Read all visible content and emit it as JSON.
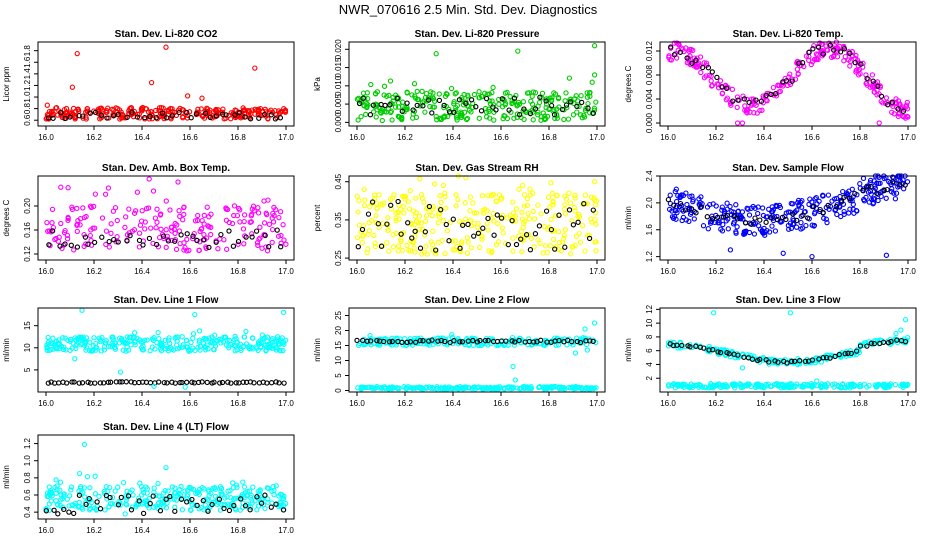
{
  "title": "NWR_070616  2.5 Min. Std. Dev. Diagnostics",
  "colors": {
    "red": "#ff0000",
    "green": "#00cc00",
    "magenta": "#ff00ff",
    "yellow": "#ffff00",
    "blue": "#0000ff",
    "cyan": "#00ffff",
    "black": "#000000"
  },
  "chart_data": [
    {
      "type": "scatter",
      "id": "li820-co2",
      "title": "Stan. Dev. Li-820 CO2",
      "ylabel": "Licor ppm",
      "xlim": [
        16.0,
        17.0
      ],
      "ylim": [
        0.5,
        1.95
      ],
      "xticks": [
        "16.0",
        "16.2",
        "16.4",
        "16.6",
        "16.8",
        "17.0"
      ],
      "yticks": [
        "0.6",
        "0.8",
        "1.0",
        "1.2",
        "1.4",
        "1.6",
        "1.8"
      ],
      "yticks_val": [
        0.6,
        0.8,
        1.0,
        1.2,
        1.4,
        1.6,
        1.8
      ],
      "color": "red",
      "n": 260,
      "band": [
        0.62,
        0.82
      ],
      "base_slope": 0.0,
      "ref_band": [
        0.62,
        0.74
      ],
      "ref_n": 40,
      "outliers": [
        [
          16.13,
          1.75
        ],
        [
          16.5,
          1.86
        ],
        [
          16.87,
          1.5
        ],
        [
          16.11,
          1.17
        ],
        [
          16.59,
          1.02
        ],
        [
          16.65,
          0.98
        ],
        [
          16.44,
          1.25
        ]
      ]
    },
    {
      "type": "scatter",
      "id": "li820-pressure",
      "title": "Stan. Dev. Li-820 Pressure",
      "ylabel": "kPa",
      "xlim": [
        16.0,
        17.0
      ],
      "ylim": [
        -0.001,
        0.022
      ],
      "xticks": [
        "16.0",
        "16.2",
        "16.4",
        "16.6",
        "16.8",
        "17.0"
      ],
      "yticks": [
        "0.000",
        "0.005",
        "0.010",
        "0.015",
        "0.020"
      ],
      "yticks_val": [
        0.0,
        0.005,
        0.01,
        0.015,
        0.02
      ],
      "color": "green",
      "n": 300,
      "band": [
        0.0005,
        0.0085
      ],
      "base_slope": 0.0,
      "ref_band": [
        0.002,
        0.007
      ],
      "ref_n": 45,
      "outliers": [
        [
          16.33,
          0.0188
        ],
        [
          16.67,
          0.0195
        ],
        [
          16.99,
          0.021
        ],
        [
          16.99,
          0.013
        ],
        [
          16.98,
          0.011
        ]
      ]
    },
    {
      "type": "scatter",
      "id": "li820-temp",
      "title": "Stan. Dev. Li-820 Temp.",
      "ylabel": "degrees C",
      "xlim": [
        16.0,
        17.0
      ],
      "ylim": [
        -0.0005,
        0.0135
      ],
      "xticks": [
        "16.0",
        "16.2",
        "16.4",
        "16.6",
        "16.8",
        "17.0"
      ],
      "yticks": [
        "0.000",
        "0.004",
        "0.008",
        "0.012"
      ],
      "yticks_val": [
        0.0,
        0.004,
        0.008,
        0.012
      ],
      "color": "magenta",
      "n": 260,
      "curve": "temp",
      "ref_n": 45,
      "outliers": [
        [
          16.29,
          0.0
        ],
        [
          16.31,
          0.0
        ],
        [
          16.88,
          0.0
        ]
      ]
    },
    {
      "type": "scatter",
      "id": "amb-box-temp",
      "title": "Stan. Dev. Amb. Box Temp.",
      "ylabel": "degrees C",
      "xlim": [
        16.0,
        17.0
      ],
      "ylim": [
        0.11,
        0.25
      ],
      "xticks": [
        "16.0",
        "16.2",
        "16.4",
        "16.6",
        "16.8",
        "17.0"
      ],
      "yticks": [
        "0.12",
        "0.16",
        "0.20"
      ],
      "yticks_val": [
        0.12,
        0.16,
        0.2
      ],
      "color": "magenta",
      "n": 220,
      "band": [
        0.125,
        0.2
      ],
      "base_slope": 0.0,
      "ref_band": [
        0.13,
        0.16
      ],
      "ref_n": 40,
      "outliers": [
        [
          16.43,
          0.245
        ],
        [
          16.55,
          0.24
        ],
        [
          16.26,
          0.23
        ]
      ]
    },
    {
      "type": "scatter",
      "id": "gas-stream-rh",
      "title": "Stan. Dev. Gas Stream RH",
      "ylabel": "percent",
      "xlim": [
        16.0,
        17.0
      ],
      "ylim": [
        0.245,
        0.465
      ],
      "xticks": [
        "16.0",
        "16.2",
        "16.4",
        "16.6",
        "16.8",
        "17.0"
      ],
      "yticks": [
        "0.25",
        "0.35",
        "0.45"
      ],
      "yticks_val": [
        0.25,
        0.35,
        0.45
      ],
      "color": "yellow",
      "n": 320,
      "band": [
        0.26,
        0.42
      ],
      "base_slope": 0.0,
      "ref_band": [
        0.27,
        0.4
      ],
      "ref_n": 50,
      "outliers": [
        [
          16.36,
          0.44
        ],
        [
          16.99,
          0.45
        ],
        [
          16.69,
          0.44
        ],
        [
          16.03,
          0.43
        ]
      ]
    },
    {
      "type": "scatter",
      "id": "sample-flow",
      "title": "Stan. Dev. Sample Flow",
      "ylabel": "ml/min",
      "xlim": [
        16.0,
        17.0
      ],
      "ylim": [
        1.15,
        2.4
      ],
      "xticks": [
        "16.0",
        "16.2",
        "16.4",
        "16.6",
        "16.8",
        "17.0"
      ],
      "yticks": [
        "1.2",
        "1.6",
        "2.0",
        "2.4"
      ],
      "yticks_val": [
        1.2,
        1.6,
        2.0,
        2.4
      ],
      "color": "blue",
      "n": 320,
      "curve": "flow",
      "ref_n": 45,
      "outliers": [
        [
          16.91,
          1.22
        ],
        [
          16.6,
          1.2
        ],
        [
          16.48,
          1.25
        ],
        [
          16.26,
          1.3
        ]
      ]
    },
    {
      "type": "scatter",
      "id": "line1-flow",
      "title": "Stan. Dev. Line 1 Flow",
      "ylabel": "ml/min",
      "xlim": [
        16.0,
        17.0
      ],
      "ylim": [
        0.0,
        19.0
      ],
      "xticks": [
        "16.0",
        "16.2",
        "16.4",
        "16.6",
        "16.8",
        "17.0"
      ],
      "yticks": [
        "5",
        "10",
        "15"
      ],
      "yticks_val": [
        5,
        10,
        15
      ],
      "color": "cyan",
      "n": 300,
      "band": [
        9.2,
        12.5
      ],
      "base_slope": 0.0,
      "ref_line": [
        2.0,
        2.3
      ],
      "ref_n": 60,
      "low_band": [
        0.5,
        1.0
      ],
      "low_n": 0,
      "outliers": [
        [
          16.15,
          18.5
        ],
        [
          16.62,
          17.5
        ],
        [
          16.99,
          18.0
        ],
        [
          16.12,
          7.5
        ],
        [
          16.31,
          4.5
        ],
        [
          16.45,
          1.3
        ],
        [
          16.58,
          1.1
        ]
      ]
    },
    {
      "type": "scatter",
      "id": "line2-flow",
      "title": "Stan. Dev. Line 2 Flow",
      "ylabel": "ml/min",
      "xlim": [
        16.0,
        17.0
      ],
      "ylim": [
        -0.5,
        27.5
      ],
      "xticks": [
        "16.0",
        "16.2",
        "16.4",
        "16.6",
        "16.8",
        "17.0"
      ],
      "yticks": [
        "0",
        "5",
        "10",
        "15",
        "20",
        "25"
      ],
      "yticks_val": [
        0,
        5,
        10,
        15,
        20,
        25
      ],
      "color": "cyan",
      "n": 220,
      "band": [
        15.0,
        17.5
      ],
      "base_slope": 0.0,
      "ref_line": [
        16.0,
        16.8
      ],
      "ref_n": 55,
      "low_band": [
        0.5,
        1.3
      ],
      "low_n": 220,
      "outliers": [
        [
          16.66,
          3.5
        ],
        [
          16.95,
          20.5
        ],
        [
          16.99,
          22.5
        ],
        [
          16.91,
          12.5
        ],
        [
          16.96,
          13.5
        ],
        [
          16.65,
          8.0
        ]
      ]
    },
    {
      "type": "scatter",
      "id": "line3-flow",
      "title": "Stan. Dev. Line 3 Flow",
      "ylabel": "ml/min",
      "xlim": [
        16.0,
        17.0
      ],
      "ylim": [
        0.0,
        12.2
      ],
      "xticks": [
        "16.0",
        "16.2",
        "16.4",
        "16.6",
        "16.8",
        "17.0"
      ],
      "yticks": [
        "2",
        "4",
        "6",
        "8",
        "10",
        "12"
      ],
      "yticks_val": [
        2,
        4,
        6,
        8,
        10,
        12
      ],
      "color": "cyan",
      "n": 200,
      "curve": "line3",
      "ref_n": 55,
      "low_band": [
        0.6,
        1.2
      ],
      "low_n": 220,
      "outliers": [
        [
          16.19,
          11.5
        ],
        [
          16.31,
          3.5
        ],
        [
          16.51,
          11.5
        ],
        [
          16.62,
          1.6
        ],
        [
          16.99,
          10.5
        ],
        [
          16.95,
          8.5
        ],
        [
          16.97,
          9.0
        ]
      ]
    },
    {
      "type": "scatter",
      "id": "line4-flow",
      "title": "Stan. Dev. Line 4 (LT) Flow",
      "ylabel": "ml/min",
      "xlim": [
        16.0,
        17.0
      ],
      "ylim": [
        0.32,
        1.3
      ],
      "xticks": [
        "16.0",
        "16.2",
        "16.4",
        "16.6",
        "16.8",
        "17.0"
      ],
      "yticks": [
        "0.4",
        "0.6",
        "0.8",
        "1.0",
        "1.2"
      ],
      "yticks_val": [
        0.4,
        0.6,
        0.8,
        1.0,
        1.2
      ],
      "color": "cyan",
      "n": 300,
      "band": [
        0.42,
        0.7
      ],
      "base_slope": 0.0,
      "ref_band": [
        0.38,
        0.6
      ],
      "ref_n": 45,
      "outliers": [
        [
          16.16,
          1.19
        ],
        [
          16.5,
          0.92
        ],
        [
          16.14,
          0.85
        ],
        [
          16.82,
          0.75
        ],
        [
          16.33,
          0.38
        ]
      ]
    }
  ]
}
